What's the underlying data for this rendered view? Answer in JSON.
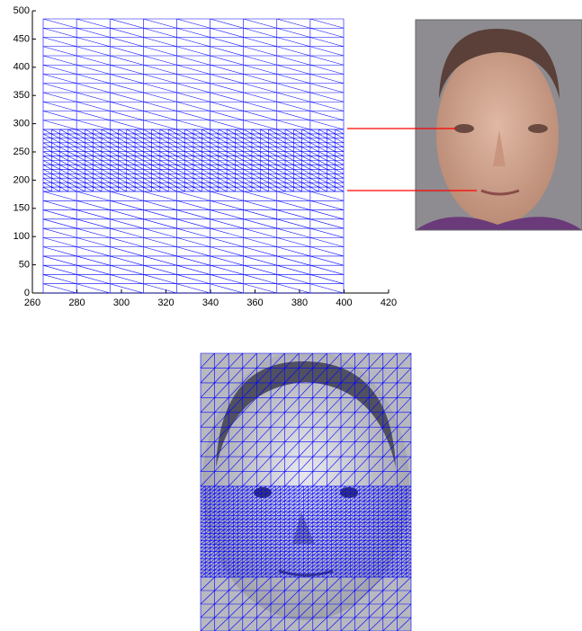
{
  "chart_data": {
    "type": "mesh",
    "xlim": [
      260,
      420
    ],
    "xticks": [
      260,
      280,
      300,
      320,
      340,
      360,
      380,
      400,
      420
    ],
    "ylim": [
      0,
      500
    ],
    "yticks": [
      0,
      50,
      100,
      150,
      200,
      250,
      300,
      350,
      400,
      450,
      500
    ],
    "color": "#0000ff"
  }
}
